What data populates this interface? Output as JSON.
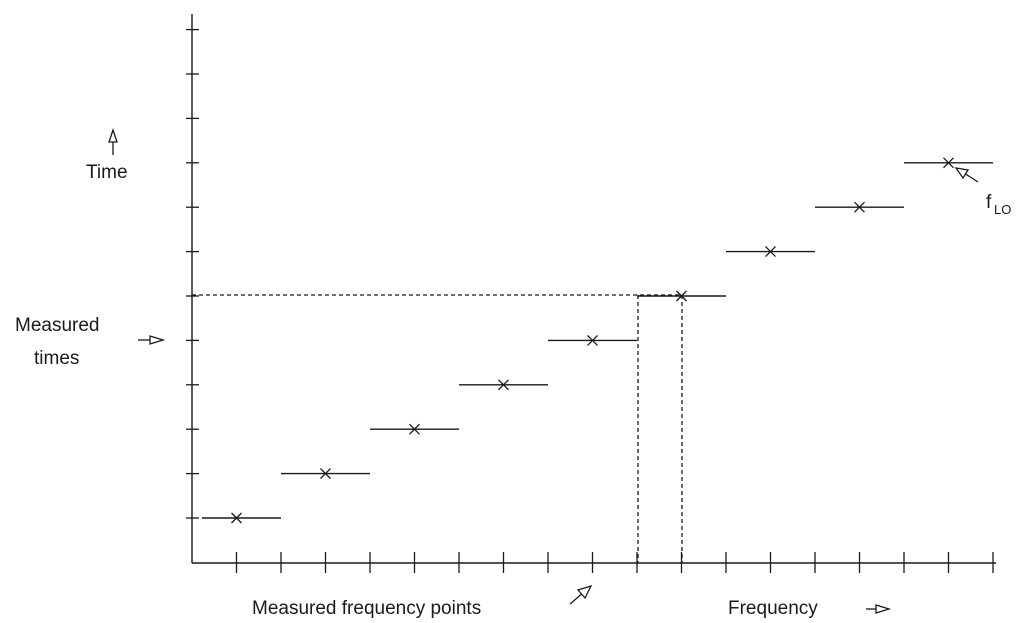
{
  "labels": {
    "time": "Time",
    "measured_times_line1": "Measured",
    "measured_times_line2": "times",
    "measured_frequency_points": "Measured frequency points",
    "frequency": "Frequency",
    "flo_main": "f",
    "flo_sub": "LO"
  },
  "axis_color": "#1a1a1a",
  "step_count": 9,
  "x_tick_count": 18,
  "y_tick_count": 12,
  "highlighted_step": 5
}
